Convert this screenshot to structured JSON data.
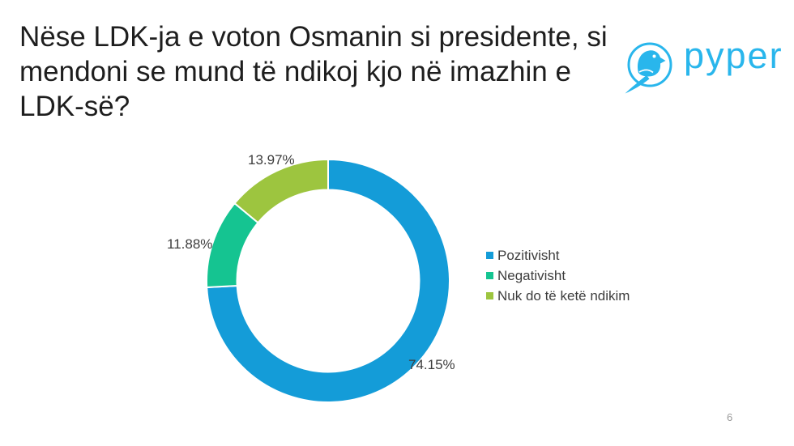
{
  "slide": {
    "title_lines": [
      "Nëse LDK-ja e voton Osmanin si presidente, si",
      "mendoni se mund të ndikoj kjo në imazhin e",
      "LDK-së?"
    ],
    "page_number": "6"
  },
  "logo": {
    "text": "pyper",
    "color": "#29b6ec"
  },
  "chart_data": {
    "type": "pie",
    "subtype": "donut",
    "title": "Nëse LDK-ja e voton Osmanin si presidente, si mendoni se mund të ndikoj kjo në imazhin e LDK-së?",
    "categories": [
      "Pozitivisht",
      "Negativisht",
      "Nuk do të ketë ndikim"
    ],
    "values": [
      74.15,
      11.88,
      13.97
    ],
    "labels": [
      "74.15%",
      "11.88%",
      "13.97%"
    ],
    "colors": [
      "#149cd8",
      "#15c491",
      "#9dc53f"
    ],
    "start_angle_deg": 0,
    "direction": "clockwise",
    "donut_hole_ratio": 0.75,
    "separator_color": "#ffffff",
    "legend_position": "right",
    "grid": false
  }
}
